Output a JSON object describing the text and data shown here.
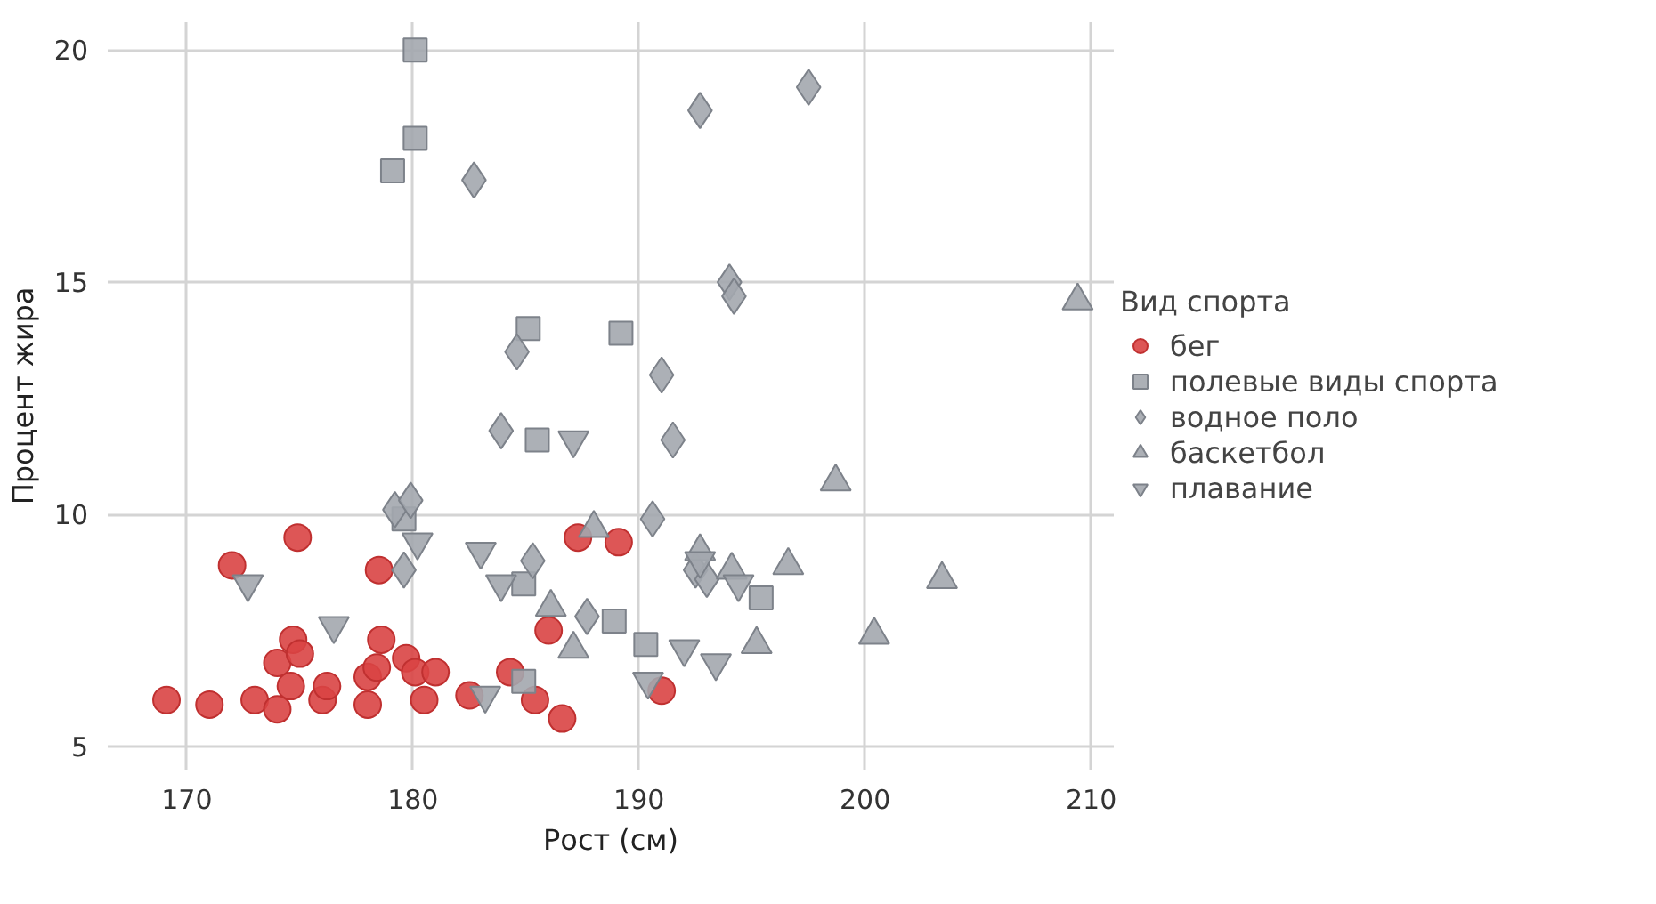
{
  "chart_data": {
    "type": "scatter",
    "xlabel": "Рост (см)",
    "ylabel": "Процент жира",
    "legend_title": "Вид спорта",
    "legend": "right",
    "grid": true,
    "xlim": [
      166.5,
      211
    ],
    "ylim": [
      4.5,
      20.6
    ],
    "xticks": [
      170,
      180,
      190,
      200,
      210
    ],
    "yticks": [
      5,
      10,
      15,
      20
    ],
    "series": [
      {
        "name": "бег",
        "color": "#d94444",
        "x": [
          169.1,
          171.0,
          172.0,
          173.0,
          174.0,
          174.6,
          174.0,
          174.7,
          175.0,
          174.9,
          176.0,
          176.2,
          178.0,
          178.0,
          178.4,
          178.6,
          178.5,
          179.7,
          180.1,
          181.0,
          180.5,
          182.5,
          184.3,
          185.4,
          186.6,
          186.0,
          187.3,
          189.1,
          191.0
        ],
        "values": [
          6.0,
          5.9,
          8.9,
          6.0,
          5.8,
          6.3,
          6.8,
          7.3,
          7.0,
          9.5,
          6.0,
          6.3,
          5.9,
          6.5,
          6.7,
          7.3,
          8.8,
          6.9,
          6.6,
          6.6,
          6.0,
          6.1,
          6.6,
          6.0,
          5.6,
          7.5,
          9.5,
          9.4,
          6.2
        ]
      },
      {
        "name": "полевые виды спорта",
        "color": "#a3a7ae",
        "x": [
          180.1,
          180.1,
          179.1,
          185.1,
          189.2,
          185.5,
          179.6,
          184.9,
          188.9,
          184.9,
          190.3,
          195.4
        ],
        "values": [
          20.0,
          18.1,
          17.4,
          14.0,
          13.9,
          11.6,
          9.9,
          8.5,
          7.7,
          6.4,
          7.2,
          8.2
        ]
      },
      {
        "name": "водное поло",
        "color": "#a3a7ae",
        "x": [
          182.7,
          184.6,
          192.7,
          197.5,
          194.0,
          194.2,
          191.0,
          183.9,
          179.2,
          179.9,
          179.6,
          185.3,
          187.7,
          191.5,
          190.6,
          192.5,
          193.0
        ],
        "values": [
          17.2,
          13.5,
          18.7,
          19.2,
          15.0,
          14.7,
          13.0,
          11.8,
          10.1,
          10.3,
          8.8,
          9.0,
          7.8,
          11.6,
          9.9,
          8.8,
          8.6
        ]
      },
      {
        "name": "баскетбол",
        "color": "#a3a7ae",
        "x": [
          188.0,
          186.1,
          187.1,
          209.4,
          198.7,
          196.6,
          194.1,
          203.4,
          200.4,
          195.2,
          192.7
        ],
        "values": [
          9.7,
          8.0,
          7.1,
          14.6,
          10.7,
          8.9,
          8.8,
          8.6,
          7.4,
          7.2,
          9.2
        ]
      },
      {
        "name": "плавание",
        "color": "#a3a7ae",
        "x": [
          187.1,
          180.2,
          183.0,
          183.9,
          172.7,
          176.5,
          183.2,
          192.7,
          194.4,
          192.0,
          193.4,
          190.4
        ],
        "values": [
          11.6,
          9.4,
          9.2,
          8.5,
          8.5,
          7.6,
          6.1,
          9.0,
          8.5,
          7.1,
          6.8,
          6.4
        ]
      }
    ]
  }
}
